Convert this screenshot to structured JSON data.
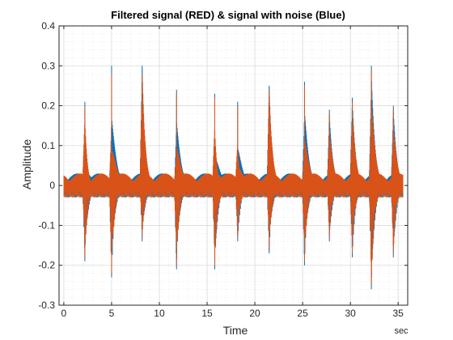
{
  "chart_data": {
    "type": "line",
    "title": "Filtered signal (RED) & signal with noise (Blue)",
    "xlabel": "Time",
    "ylabel": "Amplitude",
    "x_unit": "sec",
    "xlim": [
      -0.5,
      36
    ],
    "ylim": [
      -0.3,
      0.4
    ],
    "xticks": [
      0,
      5,
      10,
      15,
      20,
      25,
      30,
      35
    ],
    "xtick_labels": [
      "0",
      "5",
      "10",
      "15",
      "20",
      "25",
      "30",
      "35"
    ],
    "yticks": [
      -0.3,
      -0.2,
      -0.1,
      0,
      0.1,
      0.2,
      0.3,
      0.4
    ],
    "ytick_labels": [
      "-0.3",
      "-0.2",
      "-0.1",
      "0",
      "0.1",
      "0.2",
      "0.3",
      "0.4"
    ],
    "grid": true,
    "minor_grid": true,
    "duration": 35.5,
    "noise_floor": 0.03,
    "colors": {
      "noisy": "#0072BD",
      "filtered": "#D95319",
      "grid": "#d9d9d9",
      "axis": "#262626"
    },
    "series": [
      {
        "key": "noisy",
        "bursts": [
          {
            "t": 2.2,
            "max": 0.21,
            "min": -0.19
          },
          {
            "t": 5.0,
            "max": 0.3,
            "min": -0.23
          },
          {
            "t": 8.2,
            "max": 0.3,
            "min": -0.14
          },
          {
            "t": 11.8,
            "max": 0.24,
            "min": -0.21
          },
          {
            "t": 15.8,
            "max": 0.23,
            "min": -0.21
          },
          {
            "t": 18.2,
            "max": 0.21,
            "min": -0.14
          },
          {
            "t": 21.5,
            "max": 0.25,
            "min": -0.17
          },
          {
            "t": 25.2,
            "max": 0.26,
            "min": -0.2
          },
          {
            "t": 27.8,
            "max": 0.19,
            "min": -0.14
          },
          {
            "t": 30.2,
            "max": 0.22,
            "min": -0.18
          },
          {
            "t": 32.2,
            "max": 0.3,
            "min": -0.26
          },
          {
            "t": 34.5,
            "max": 0.2,
            "min": -0.18
          }
        ]
      },
      {
        "key": "filtered",
        "bursts": [
          {
            "t": 2.2,
            "max": 0.2,
            "min": -0.18
          },
          {
            "t": 5.0,
            "max": 0.28,
            "min": -0.22
          },
          {
            "t": 8.2,
            "max": 0.28,
            "min": -0.13
          },
          {
            "t": 11.8,
            "max": 0.23,
            "min": -0.2
          },
          {
            "t": 15.8,
            "max": 0.22,
            "min": -0.2
          },
          {
            "t": 18.2,
            "max": 0.2,
            "min": -0.13
          },
          {
            "t": 21.5,
            "max": 0.24,
            "min": -0.16
          },
          {
            "t": 25.2,
            "max": 0.25,
            "min": -0.19
          },
          {
            "t": 27.8,
            "max": 0.18,
            "min": -0.13
          },
          {
            "t": 30.2,
            "max": 0.21,
            "min": -0.17
          },
          {
            "t": 32.2,
            "max": 0.29,
            "min": -0.25
          },
          {
            "t": 34.5,
            "max": 0.19,
            "min": -0.17
          }
        ]
      }
    ]
  }
}
